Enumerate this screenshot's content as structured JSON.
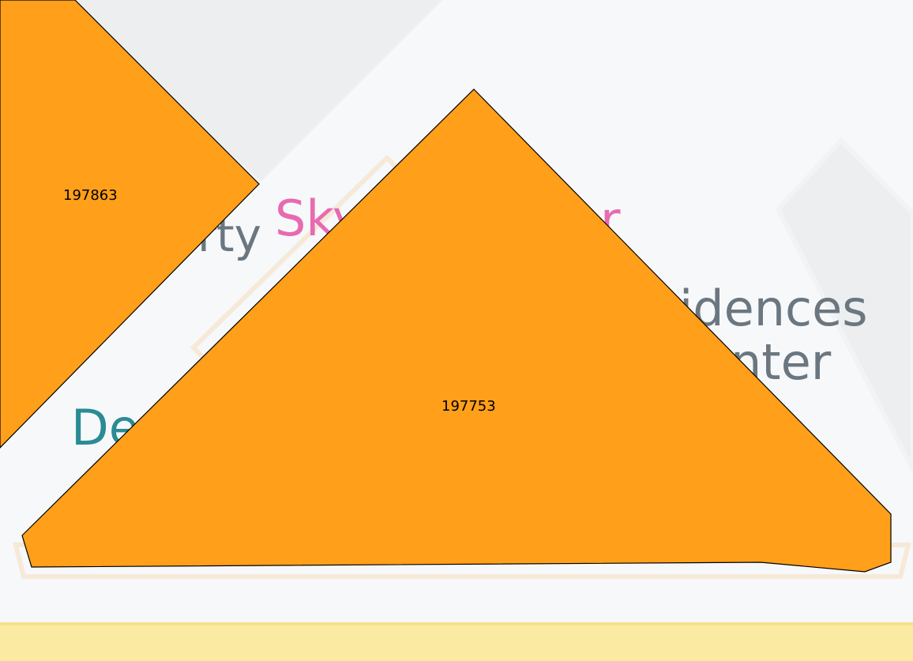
{
  "map": {
    "colors": {
      "background": "#f7f8fa",
      "block": "#eceef0",
      "block_outline": "#f6e9d8",
      "road": "#fbeaa2",
      "road_edge": "#f5e08a",
      "parcel_fill": "#ff9f1a",
      "parcel_stroke": "#000000",
      "label_gray": "#6b7780",
      "label_pink": "#e86ab1",
      "label_teal": "#2a8b95"
    },
    "basemap_labels": {
      "label_1": "rty",
      "label_2": "Sky",
      "label_3": "r",
      "label_4": "idences",
      "label_5": "nter",
      "label_6": "De"
    },
    "parcels": [
      {
        "id": "197863",
        "label": "197863"
      },
      {
        "id": "197753",
        "label": "197753"
      }
    ]
  }
}
